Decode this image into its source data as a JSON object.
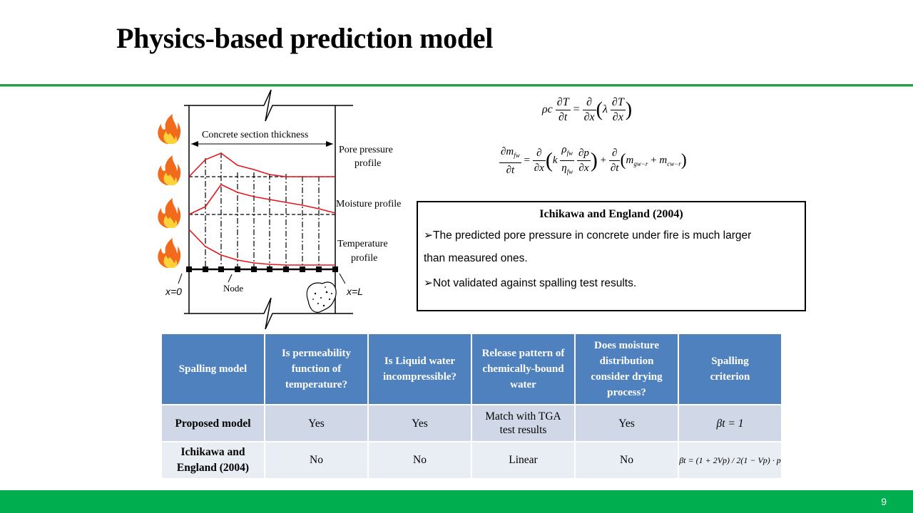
{
  "title": "Physics-based prediction model",
  "diagram": {
    "thickness_label": "Concrete section thickness",
    "pore_pressure_label_1": "Pore pressure",
    "pore_pressure_label_2": "profile",
    "moisture_label": "Moisture profile",
    "temperature_label_1": "Temperature",
    "temperature_label_2": "profile",
    "x0_label": "x=0",
    "xL_label": "x=L",
    "node_label": "Node",
    "flame_icon": "fire-icon",
    "curve_color": "#e3161b"
  },
  "equations": {
    "heat_equation": "ρc ∂T/∂t = ∂/∂x(λ ∂T/∂x)",
    "moisture_equation": "∂m_fw/∂t = ∂/∂x(k ρ_fw/η_fw ∂p/∂x) + ∂/∂t(m_gw−r + m_cw−r)"
  },
  "note": {
    "title": "Ichikawa and   England (2004)",
    "line1": "➢The predicted pore pressure in concrete under fire is much larger",
    "line2": "than measured ones.",
    "line3": "➢Not validated against spalling test results."
  },
  "table": {
    "header_color": "#4e81bd",
    "headers": [
      "Spalling model",
      "Is permeability function of temperature?",
      "Is Liquid water incompressible?",
      "Release pattern of chemically-bound water",
      "Does moisture distribution consider drying process?",
      "Spalling criterion"
    ],
    "rows": [
      [
        "Proposed model",
        "Yes",
        "Yes",
        "Match with TGA test results",
        "Yes",
        "βt = 1"
      ],
      [
        "Ichikawa and England (2004)",
        "No",
        "No",
        "Linear",
        "No",
        "βt = (1 + 2Vp) / 2(1 − Vp) · p"
      ]
    ]
  },
  "footer": {
    "page_number": "9",
    "color": "#00ad4f"
  }
}
